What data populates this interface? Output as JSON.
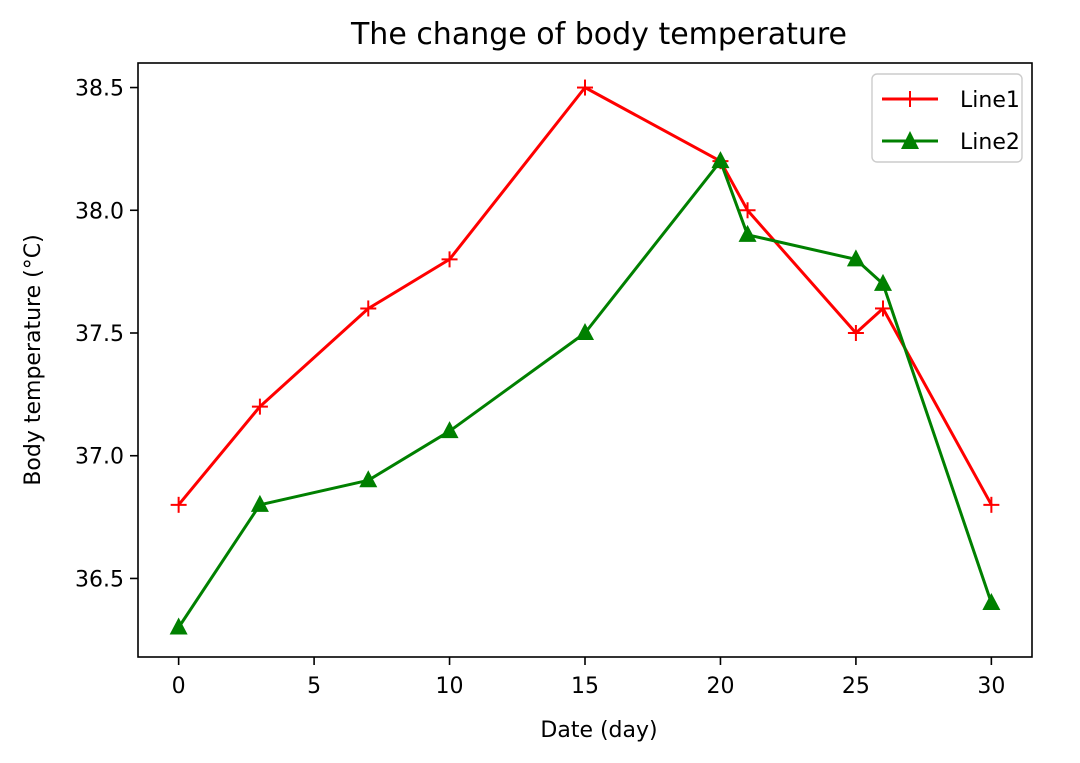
{
  "chart_data": {
    "type": "line",
    "title": "The change of body temperature",
    "xlabel": "Date (day)",
    "ylabel": "Body temperature (°C)",
    "xlim": [
      -1.5,
      31.5
    ],
    "ylim": [
      36.18,
      38.6
    ],
    "xticks": [
      0,
      5,
      10,
      15,
      20,
      25,
      30
    ],
    "yticks": [
      36.5,
      37.0,
      37.5,
      38.0,
      38.5
    ],
    "xtick_labels": [
      "0",
      "5",
      "10",
      "15",
      "20",
      "25",
      "30"
    ],
    "ytick_labels": [
      "36.5",
      "37.0",
      "37.5",
      "38.0",
      "38.5"
    ],
    "grid": false,
    "legend_position": "top-right",
    "series": [
      {
        "name": "Line1",
        "color": "#ff0000",
        "marker": "plus",
        "x": [
          0,
          3,
          7,
          10,
          15,
          20,
          21,
          25,
          26,
          30
        ],
        "y": [
          36.8,
          37.2,
          37.6,
          37.8,
          38.5,
          38.2,
          38.0,
          37.5,
          37.6,
          36.8
        ]
      },
      {
        "name": "Line2",
        "color": "#008000",
        "marker": "triangle-up",
        "x": [
          0,
          3,
          7,
          10,
          15,
          20,
          21,
          25,
          26,
          30
        ],
        "y": [
          36.3,
          36.8,
          36.9,
          37.1,
          37.5,
          38.2,
          37.9,
          37.8,
          37.7,
          36.4
        ]
      }
    ]
  }
}
